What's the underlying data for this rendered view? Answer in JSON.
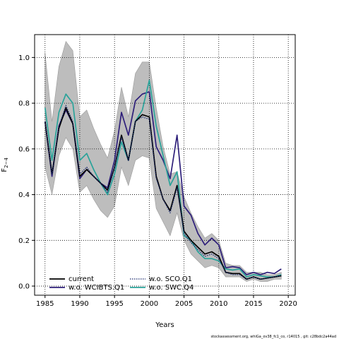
{
  "chart_data": {
    "type": "line",
    "xlabel": "Years",
    "ylabel": "F",
    "ylabel_sub": "2−4",
    "xlim": [
      1983.5,
      2021
    ],
    "ylim": [
      -0.04,
      1.1
    ],
    "xticks": [
      1985,
      1990,
      1995,
      2000,
      2005,
      2010,
      2015,
      2020
    ],
    "yticks": [
      0.0,
      0.2,
      0.4,
      0.6,
      0.8,
      1.0
    ],
    "grid": true,
    "legend_position": "bottom-left",
    "x": [
      1985,
      1986,
      1987,
      1988,
      1989,
      1990,
      1991,
      1992,
      1993,
      1994,
      1995,
      1996,
      1997,
      1998,
      1999,
      2000,
      2001,
      2002,
      2003,
      2004,
      2005,
      2006,
      2007,
      2008,
      2009,
      2010,
      2011,
      2012,
      2013,
      2014,
      2015,
      2016,
      2017,
      2018,
      2019
    ],
    "band": {
      "upper": [
        1.02,
        0.72,
        0.96,
        1.07,
        1.03,
        0.74,
        0.77,
        0.69,
        0.62,
        0.56,
        0.68,
        0.87,
        0.74,
        0.93,
        0.98,
        0.98,
        0.78,
        0.61,
        0.49,
        0.5,
        0.39,
        0.32,
        0.26,
        0.21,
        0.23,
        0.2,
        0.1,
        0.09,
        0.09,
        0.06,
        0.06,
        0.06,
        0.05,
        0.05,
        0.06
      ],
      "lower": [
        0.52,
        0.4,
        0.57,
        0.65,
        0.6,
        0.41,
        0.44,
        0.38,
        0.33,
        0.3,
        0.35,
        0.52,
        0.44,
        0.55,
        0.57,
        0.56,
        0.34,
        0.28,
        0.22,
        0.32,
        0.2,
        0.14,
        0.11,
        0.08,
        0.09,
        0.08,
        0.04,
        0.04,
        0.04,
        0.02,
        0.03,
        0.02,
        0.02,
        0.03,
        0.03
      ]
    },
    "series": [
      {
        "name": "current",
        "color": "#000000",
        "dash": "solid",
        "values": [
          0.72,
          0.49,
          0.69,
          0.78,
          0.71,
          0.48,
          0.51,
          0.48,
          0.45,
          0.42,
          0.52,
          0.66,
          0.55,
          0.72,
          0.75,
          0.74,
          0.48,
          0.38,
          0.33,
          0.44,
          0.24,
          0.2,
          0.17,
          0.14,
          0.15,
          0.13,
          0.06,
          0.055,
          0.055,
          0.03,
          0.04,
          0.03,
          0.035,
          0.04,
          0.045
        ]
      },
      {
        "name": "w.o. WCIBTS.Q1",
        "color": "#2e1f7a",
        "dash": "solid",
        "values": [
          0.72,
          0.48,
          0.7,
          0.77,
          0.71,
          0.47,
          0.51,
          0.48,
          0.45,
          0.43,
          0.55,
          0.76,
          0.66,
          0.81,
          0.84,
          0.85,
          0.61,
          0.55,
          0.47,
          0.66,
          0.35,
          0.31,
          0.23,
          0.18,
          0.21,
          0.18,
          0.08,
          0.085,
          0.08,
          0.05,
          0.06,
          0.05,
          0.06,
          0.055,
          0.075
        ]
      },
      {
        "name": "w.o. SCO.Q1",
        "color": "#1b2a6e",
        "dash": "dotted",
        "values": [
          0.72,
          0.49,
          0.7,
          0.79,
          0.72,
          0.49,
          0.52,
          0.48,
          0.45,
          0.41,
          0.52,
          0.65,
          0.55,
          0.72,
          0.74,
          0.73,
          0.47,
          0.38,
          0.32,
          0.43,
          0.23,
          0.19,
          0.16,
          0.13,
          0.14,
          0.12,
          0.06,
          0.05,
          0.05,
          0.03,
          0.04,
          0.03,
          0.035,
          0.04,
          0.045
        ]
      },
      {
        "name": "w.o. SWC.Q4",
        "color": "#2aa39a",
        "dash": "solid",
        "values": [
          0.78,
          0.55,
          0.76,
          0.84,
          0.8,
          0.55,
          0.58,
          0.51,
          0.45,
          0.4,
          0.49,
          0.63,
          0.55,
          0.72,
          0.77,
          0.9,
          0.7,
          0.57,
          0.44,
          0.5,
          0.22,
          0.2,
          0.15,
          0.12,
          0.12,
          0.11,
          0.075,
          0.07,
          0.075,
          0.04,
          0.05,
          0.045,
          0.04,
          0.04,
          0.05
        ]
      }
    ],
    "footer": "stockassessment.org, whiGa_ov38_fc1_co, r14015 , git: c28bdc2a44ad"
  }
}
